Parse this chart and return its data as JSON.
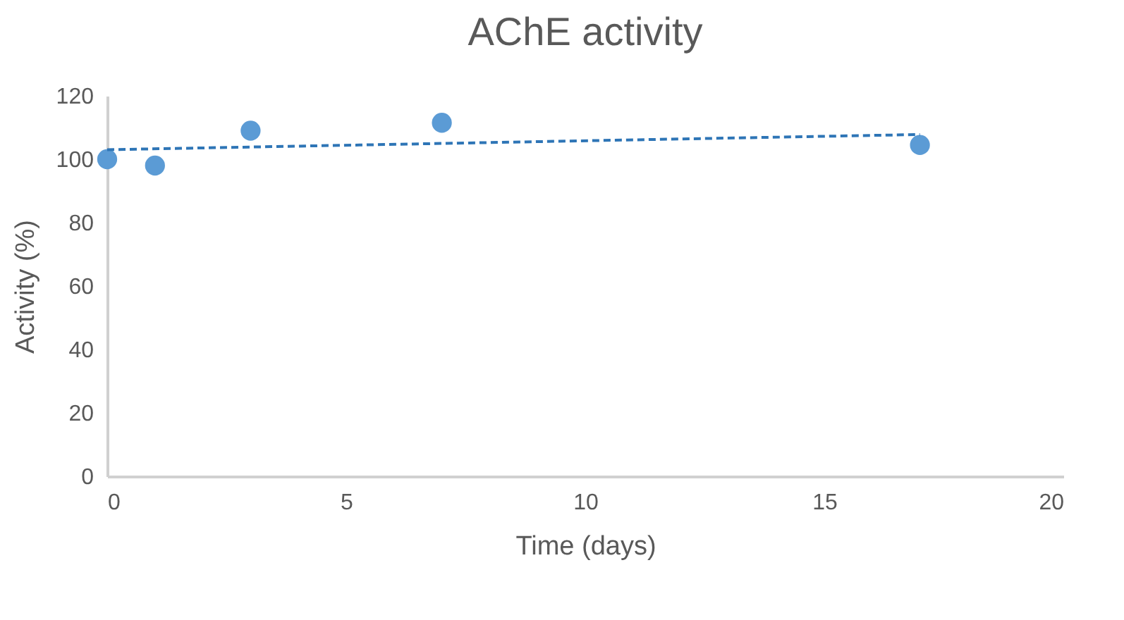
{
  "chart_data": {
    "type": "scatter",
    "title": "AChE activity",
    "xlabel": "Time (days)",
    "ylabel": "Activity (%)",
    "x": [
      0,
      1,
      3,
      7,
      17
    ],
    "series": [
      {
        "color": "#5b9bd5",
        "values": [
          100,
          98,
          109,
          111.5,
          104.5
        ],
        "marker": "circle"
      },
      {
        "type": "line",
        "color": "#2e75b6",
        "x": [
          0,
          17
        ],
        "values": [
          103,
          107.8
        ],
        "line_style": "dashed"
      }
    ],
    "xlim": [
      0,
      20
    ],
    "xticks": [
      0,
      5,
      10,
      15,
      20
    ],
    "ylim": [
      0,
      120
    ],
    "yticks": [
      0,
      20,
      40,
      60,
      80,
      100,
      120
    ],
    "grid": false
  }
}
